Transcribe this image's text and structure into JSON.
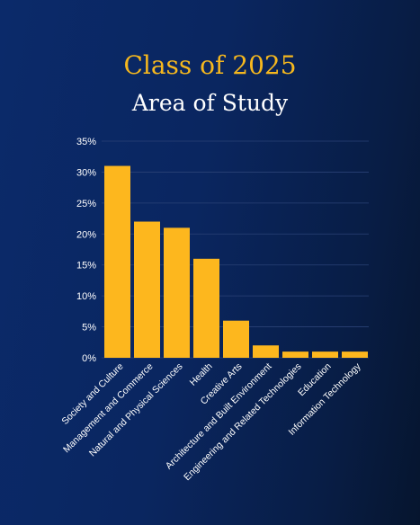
{
  "header": {
    "title": "Class of 2025",
    "subtitle": "Area of Study"
  },
  "colors": {
    "background": "#0a2660",
    "bar": "#fdb71e",
    "title": "#f6b81e",
    "text": "#ffffff",
    "grid": "#2a4276"
  },
  "chart_data": {
    "type": "bar",
    "title": "Class of 2025",
    "subtitle": "Area of Study",
    "xlabel": "",
    "ylabel": "",
    "categories": [
      "Society and Culture",
      "Management and Commerce",
      "Natural and Physical Sciences",
      "Health",
      "Creative Arts",
      "Architecture and Built Environment",
      "Engineering and Related Technologies",
      "Education",
      "Information Technology"
    ],
    "values": [
      31,
      22,
      21,
      16,
      6,
      2,
      1,
      1,
      1
    ],
    "ylim": [
      0,
      35
    ],
    "yticks": [
      0,
      5,
      10,
      15,
      20,
      25,
      30,
      35
    ],
    "ytick_labels": [
      "0%",
      "5%",
      "10%",
      "15%",
      "20%",
      "25%",
      "30%",
      "35%"
    ],
    "grid": true,
    "legend": "none"
  }
}
